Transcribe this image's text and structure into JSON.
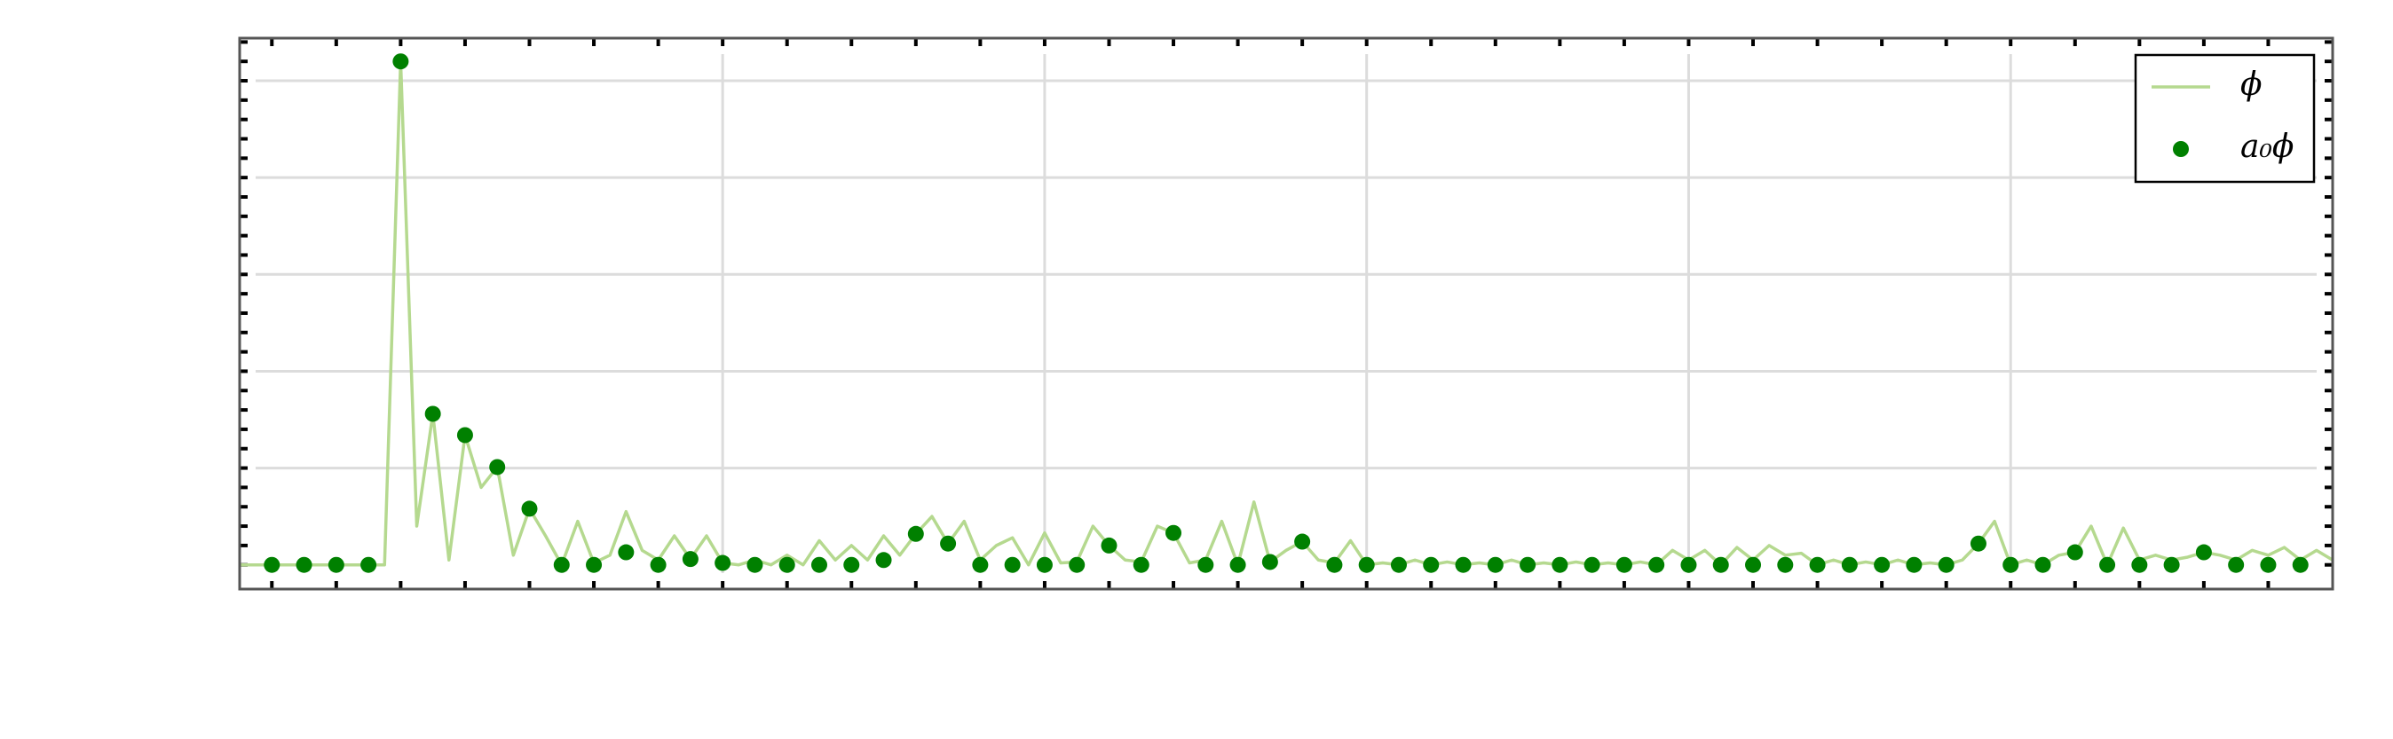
{
  "chart_data": {
    "type": "line",
    "xlim": [
      0,
      65
    ],
    "ylim": [
      -0.25,
      5.44
    ],
    "xticks": [
      15,
      25,
      35,
      45,
      55
    ],
    "yticks": [
      1,
      2,
      3,
      4,
      5
    ],
    "xminor_ticks": [
      1,
      3,
      5,
      7,
      9,
      11,
      13,
      15,
      17,
      19,
      21,
      23,
      25,
      27,
      29,
      31,
      33,
      35,
      37,
      39,
      41,
      43,
      45,
      47,
      49,
      51,
      53,
      55,
      57,
      59,
      61,
      63
    ],
    "yminor_ticks": [
      0,
      0.2,
      0.4,
      0.6,
      0.8,
      1,
      1.2,
      1.4,
      1.6,
      1.8,
      2,
      2.2,
      2.4,
      2.6,
      2.8,
      3,
      3.2,
      3.4,
      3.6,
      3.8,
      4,
      4.2,
      4.4,
      4.6,
      4.8,
      5,
      5.2,
      5.4
    ],
    "grid": true,
    "legend": "upper right",
    "series": [
      {
        "name": "ϕ",
        "type": "line",
        "color": "#b5d98f",
        "x": [
          0,
          0.5,
          1,
          1.5,
          2,
          2.5,
          3,
          3.5,
          4,
          4.5,
          5,
          5.5,
          6,
          6.5,
          7,
          7.5,
          8,
          8.5,
          9,
          9.5,
          10,
          10.5,
          11,
          11.5,
          12,
          12.5,
          13,
          13.5,
          14,
          14.5,
          15,
          15.5,
          16,
          16.5,
          17,
          17.5,
          18,
          18.5,
          19,
          19.5,
          20,
          20.5,
          21,
          21.5,
          22,
          22.5,
          23,
          23.5,
          24,
          24.5,
          25,
          25.5,
          26,
          26.5,
          27,
          27.5,
          28,
          28.5,
          29,
          29.5,
          30,
          30.5,
          31,
          31.5,
          32,
          32.5,
          33,
          33.5,
          34,
          34.5,
          35,
          35.5,
          36,
          36.5,
          37,
          37.5,
          38,
          38.5,
          39,
          39.5,
          40,
          40.5,
          41,
          41.5,
          42,
          42.5,
          43,
          43.5,
          44,
          44.5,
          45,
          45.5,
          46,
          46.5,
          47,
          47.5,
          48,
          48.5,
          49,
          49.5,
          50,
          50.5,
          51,
          51.5,
          52,
          52.5,
          53,
          53.5,
          54,
          54.5,
          55,
          55.5,
          56,
          56.5,
          57,
          57.5,
          58,
          58.5,
          59,
          59.5,
          60,
          60.5,
          61,
          61.5,
          62,
          62.5,
          63,
          63.5,
          64,
          64.5,
          65
        ],
        "values": [
          0,
          0,
          0,
          0,
          0,
          0,
          0,
          0,
          0,
          0,
          5.2,
          0.4,
          1.56,
          0.05,
          1.34,
          0.8,
          1.01,
          0.1,
          0.58,
          0.3,
          0,
          0.45,
          0.02,
          0.1,
          0.55,
          0.15,
          0.05,
          0.3,
          0.06,
          0.3,
          0.02,
          0,
          0.05,
          0,
          0.1,
          0,
          0.25,
          0.05,
          0.2,
          0.05,
          0.3,
          0.1,
          0.32,
          0.5,
          0.22,
          0.45,
          0.05,
          0.2,
          0.28,
          0,
          0.33,
          0.02,
          0.03,
          0.4,
          0.2,
          0.05,
          0.03,
          0.4,
          0.33,
          0.02,
          0.05,
          0.45,
          0,
          0.65,
          0.03,
          0.15,
          0.24,
          0.05,
          0.02,
          0.25,
          0,
          0.02,
          0,
          0.05,
          0,
          0.03,
          0,
          0.02,
          0,
          0.05,
          0,
          0.02,
          0,
          0.03,
          0,
          0.02,
          0,
          0.03,
          0,
          0.15,
          0.05,
          0.15,
          0,
          0.18,
          0.05,
          0.2,
          0.1,
          0.12,
          0,
          0.05,
          0,
          0.03,
          0,
          0.05,
          0,
          0.02,
          0,
          0.05,
          0.22,
          0.45,
          0,
          0.05,
          0,
          0.1,
          0.13,
          0.4,
          0,
          0.38,
          0.05,
          0.1,
          0.05,
          0.08,
          0.13,
          0.1,
          0.05,
          0.15,
          0.1,
          0.18,
          0.05,
          0.15,
          0.05
        ]
      },
      {
        "name": "a₀ϕ",
        "type": "scatter",
        "color": "#008000",
        "x": [
          1,
          2,
          3,
          4,
          5,
          6,
          7,
          8,
          9,
          10,
          11,
          12,
          13,
          14,
          15,
          16,
          17,
          18,
          19,
          20,
          21,
          22,
          23,
          24,
          25,
          26,
          27,
          28,
          29,
          30,
          31,
          32,
          33,
          34,
          35,
          36,
          37,
          38,
          39,
          40,
          41,
          42,
          43,
          44,
          45,
          46,
          47,
          48,
          49,
          50,
          51,
          52,
          53,
          54,
          55,
          56,
          57,
          58,
          59,
          60,
          61,
          62,
          63,
          64
        ],
        "values": [
          0,
          0,
          0,
          0,
          5.2,
          1.56,
          1.34,
          1.01,
          0.58,
          0,
          0,
          0.13,
          0,
          0.06,
          0.02,
          0,
          0,
          0,
          0,
          0.05,
          0.32,
          0.22,
          0,
          0,
          0,
          0,
          0.2,
          0,
          0.33,
          0,
          0,
          0.03,
          0.24,
          0,
          0,
          0,
          0,
          0,
          0,
          0,
          0,
          0,
          0,
          0,
          0,
          0,
          0,
          0,
          0,
          0,
          0,
          0,
          0,
          0.22,
          0,
          0,
          0.13,
          0,
          0,
          0,
          0.13,
          0,
          0,
          0
        ]
      }
    ]
  }
}
